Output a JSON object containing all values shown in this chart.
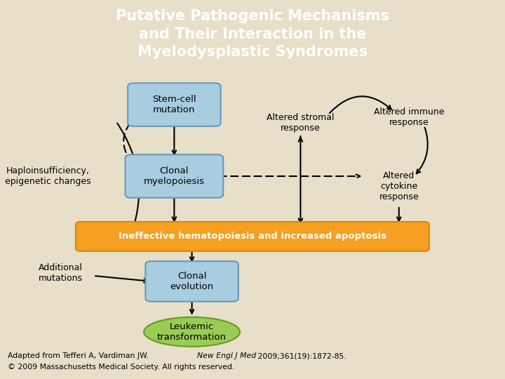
{
  "title_text": "Putative Pathogenic Mechanisms\nand Their Interaction in the\nMyelodysplastic Syndromes",
  "title_bg": "#1b3a6b",
  "title_color": "#ffffff",
  "body_bg": "#e8dfc8",
  "box_blue_fill": "#a8cce0",
  "box_blue_edge": "#6699bb",
  "box_orange_fill": "#f5a020",
  "box_orange_edge": "#dd8800",
  "box_green_fill": "#99cc55",
  "box_green_edge": "#669922",
  "caption_normal": "Adapted from Tefferi A, Vardiman JW. ",
  "caption_italic": "New Engl J Med",
  "caption_end": " 2009;361(19):1872-85.",
  "caption_line2": "© 2009 Massachusetts Medical Society. All rights reserved."
}
